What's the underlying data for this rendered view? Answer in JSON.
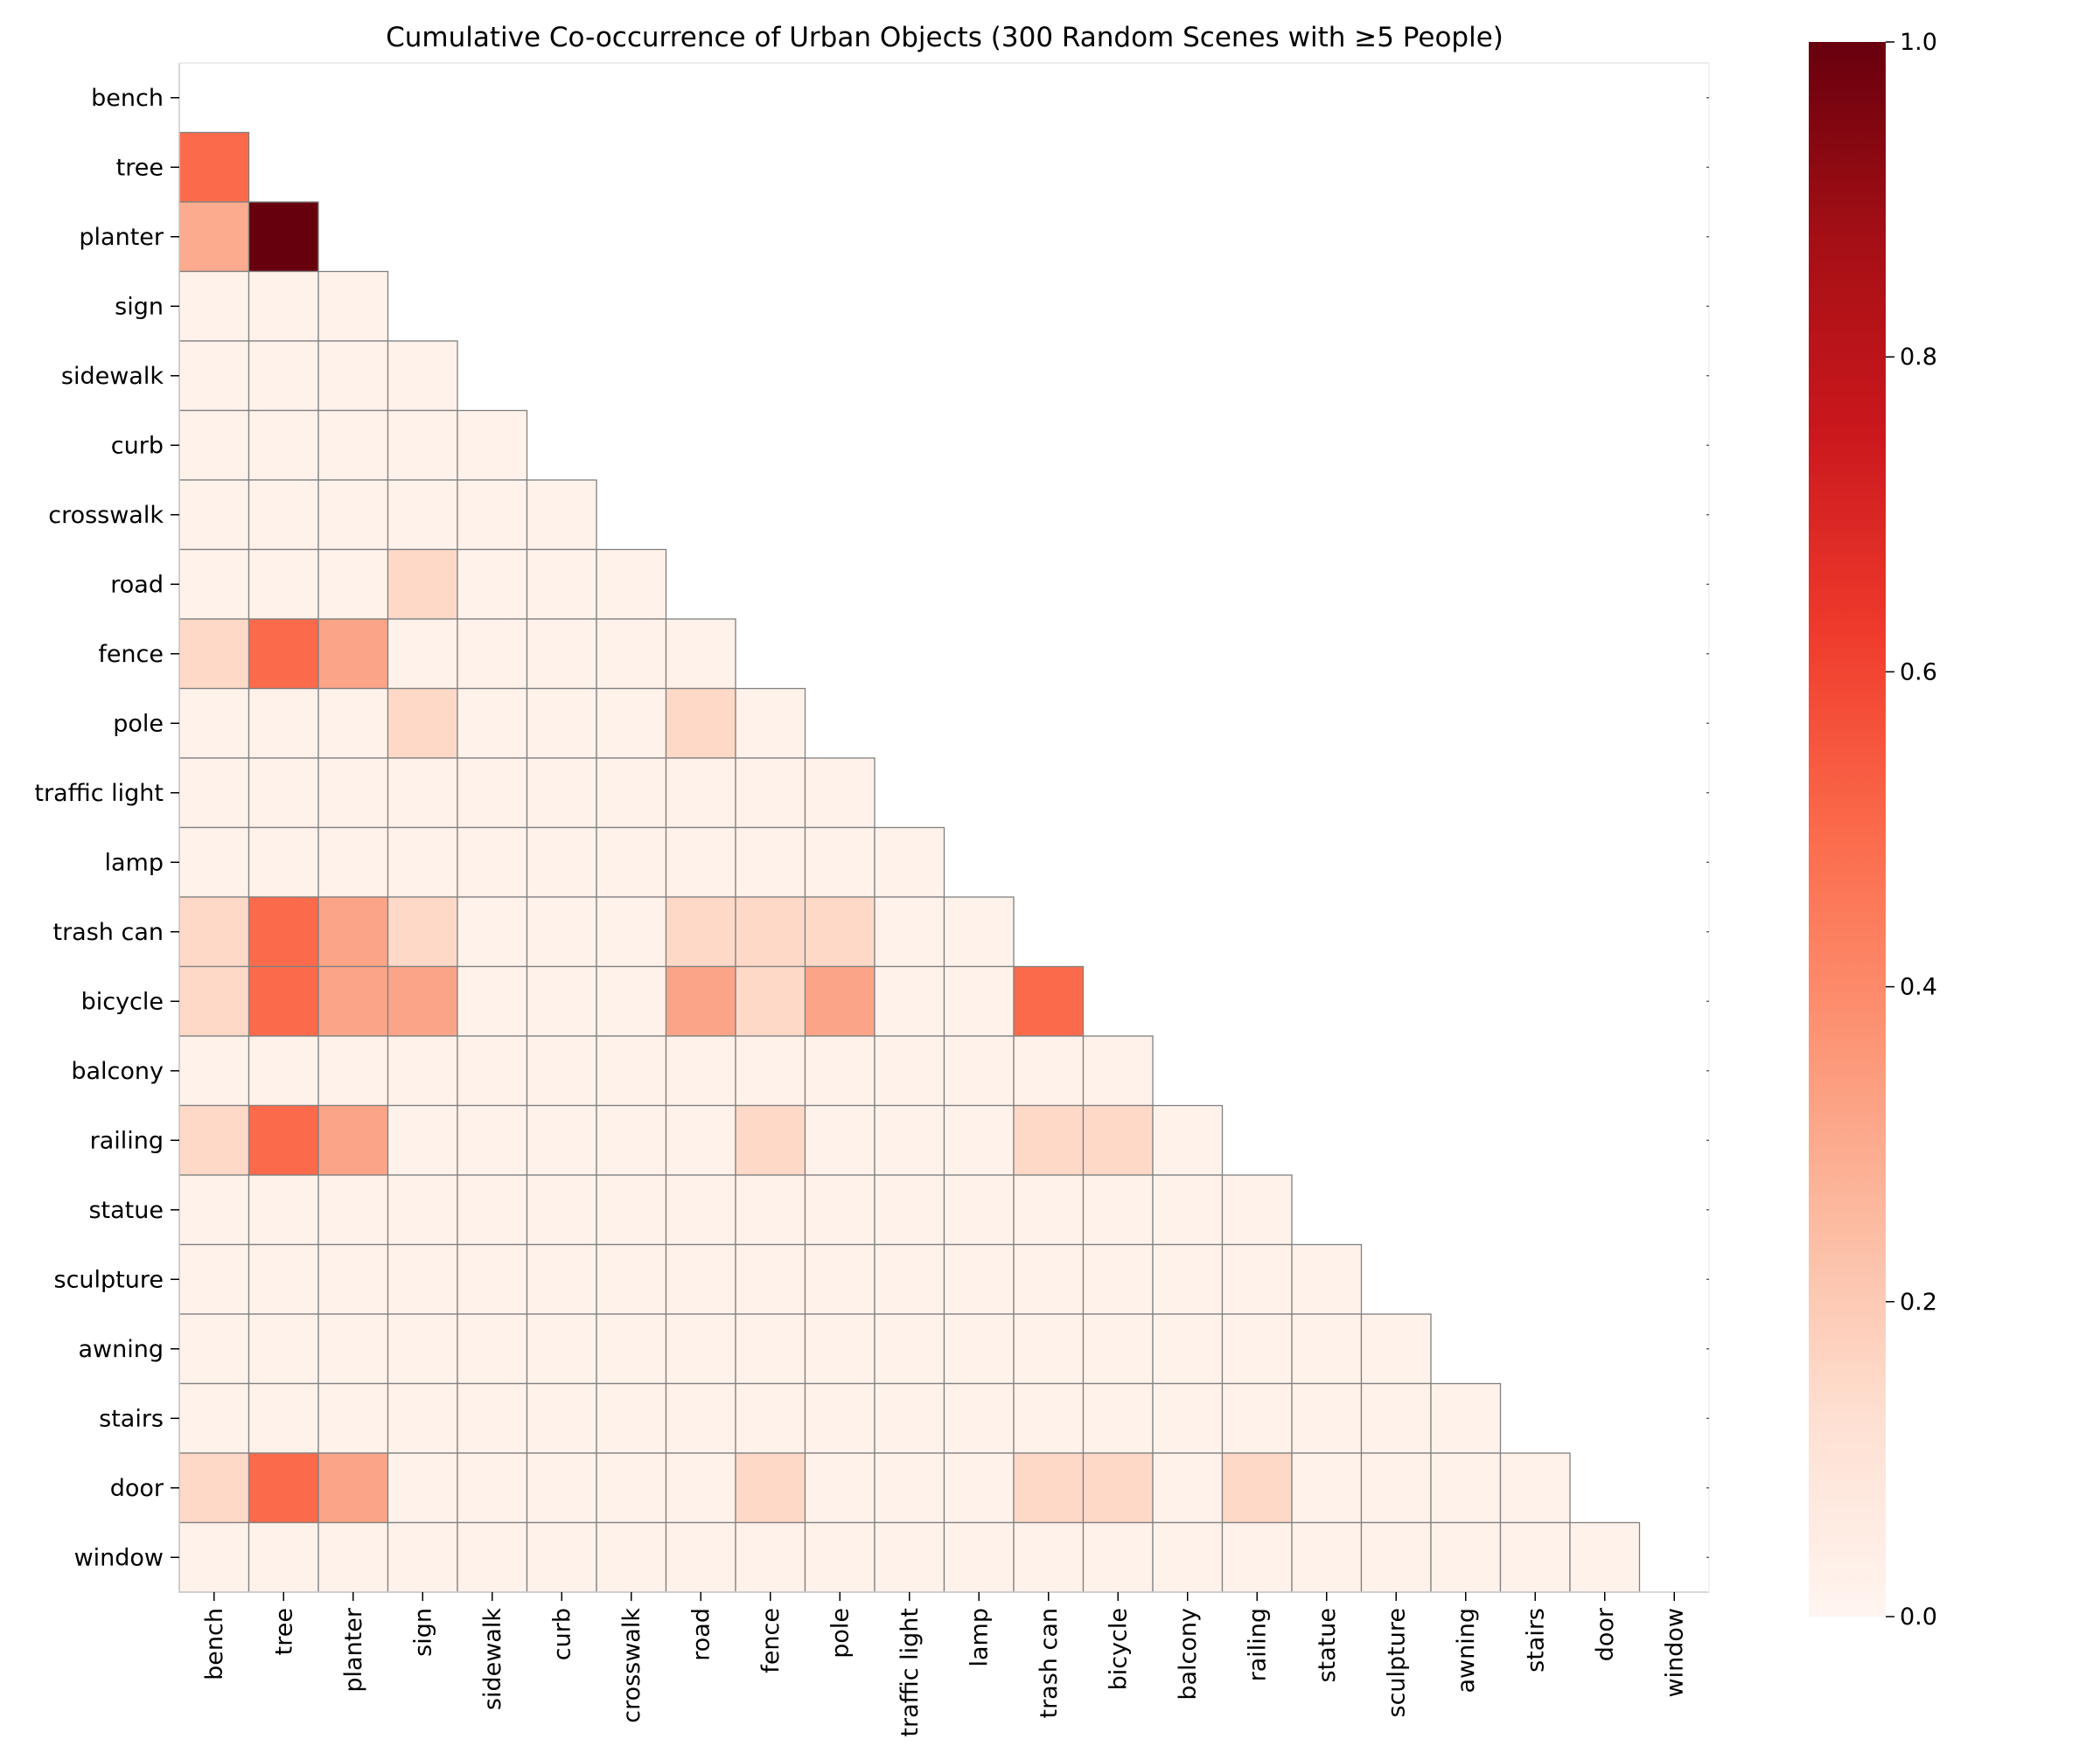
{
  "chart_data": {
    "type": "heatmap",
    "title": "Cumulative Co-occurrence of Urban Objects (300 Random Scenes with ≥5 People)",
    "xlabel": "",
    "ylabel": "",
    "mask": "lower-triangle",
    "labels": [
      "bench",
      "tree",
      "planter",
      "sign",
      "sidewalk",
      "curb",
      "crosswalk",
      "road",
      "fence",
      "pole",
      "traffic light",
      "lamp",
      "trash can",
      "bicycle",
      "balcony",
      "railing",
      "statue",
      "sculpture",
      "awning",
      "stairs",
      "door",
      "window"
    ],
    "matrix": [
      [],
      [
        0.5
      ],
      [
        0.3,
        1.0
      ],
      [
        0.02,
        0.02,
        0.02
      ],
      [
        0.02,
        0.02,
        0.02,
        0.02
      ],
      [
        0.02,
        0.02,
        0.02,
        0.02,
        0.02
      ],
      [
        0.02,
        0.02,
        0.02,
        0.02,
        0.02,
        0.02
      ],
      [
        0.02,
        0.02,
        0.02,
        0.15,
        0.02,
        0.02,
        0.02
      ],
      [
        0.15,
        0.5,
        0.32,
        0.02,
        0.02,
        0.02,
        0.02,
        0.02
      ],
      [
        0.02,
        0.02,
        0.02,
        0.15,
        0.02,
        0.02,
        0.02,
        0.15,
        0.02
      ],
      [
        0.02,
        0.02,
        0.02,
        0.02,
        0.02,
        0.02,
        0.02,
        0.02,
        0.02,
        0.02
      ],
      [
        0.02,
        0.02,
        0.02,
        0.02,
        0.02,
        0.02,
        0.02,
        0.02,
        0.02,
        0.02,
        0.02
      ],
      [
        0.15,
        0.5,
        0.32,
        0.15,
        0.02,
        0.02,
        0.02,
        0.15,
        0.15,
        0.15,
        0.02,
        0.02
      ],
      [
        0.15,
        0.5,
        0.32,
        0.32,
        0.02,
        0.02,
        0.02,
        0.32,
        0.15,
        0.32,
        0.02,
        0.02,
        0.5
      ],
      [
        0.02,
        0.02,
        0.02,
        0.02,
        0.02,
        0.02,
        0.02,
        0.02,
        0.02,
        0.02,
        0.02,
        0.02,
        0.02,
        0.02
      ],
      [
        0.15,
        0.5,
        0.32,
        0.02,
        0.02,
        0.02,
        0.02,
        0.02,
        0.15,
        0.02,
        0.02,
        0.02,
        0.15,
        0.15,
        0.02
      ],
      [
        0.02,
        0.02,
        0.02,
        0.02,
        0.02,
        0.02,
        0.02,
        0.02,
        0.02,
        0.02,
        0.02,
        0.02,
        0.02,
        0.02,
        0.02,
        0.02
      ],
      [
        0.02,
        0.02,
        0.02,
        0.02,
        0.02,
        0.02,
        0.02,
        0.02,
        0.02,
        0.02,
        0.02,
        0.02,
        0.02,
        0.02,
        0.02,
        0.02,
        0.02
      ],
      [
        0.02,
        0.02,
        0.02,
        0.02,
        0.02,
        0.02,
        0.02,
        0.02,
        0.02,
        0.02,
        0.02,
        0.02,
        0.02,
        0.02,
        0.02,
        0.02,
        0.02,
        0.02
      ],
      [
        0.02,
        0.02,
        0.02,
        0.02,
        0.02,
        0.02,
        0.02,
        0.02,
        0.02,
        0.02,
        0.02,
        0.02,
        0.02,
        0.02,
        0.02,
        0.02,
        0.02,
        0.02,
        0.02
      ],
      [
        0.15,
        0.5,
        0.32,
        0.02,
        0.02,
        0.02,
        0.02,
        0.02,
        0.15,
        0.02,
        0.02,
        0.02,
        0.15,
        0.15,
        0.02,
        0.15,
        0.02,
        0.02,
        0.02,
        0.02
      ],
      [
        0.02,
        0.02,
        0.02,
        0.02,
        0.02,
        0.02,
        0.02,
        0.02,
        0.02,
        0.02,
        0.02,
        0.02,
        0.02,
        0.02,
        0.02,
        0.02,
        0.02,
        0.02,
        0.02,
        0.02,
        0.02
      ]
    ],
    "colorbar": {
      "range": [
        0.0,
        1.0
      ],
      "ticks": [
        0.0,
        0.2,
        0.4,
        0.6,
        0.8,
        1.0
      ],
      "tick_labels": [
        "0.0",
        "0.2",
        "0.4",
        "0.6",
        "0.8",
        "1.0"
      ],
      "colormap": "Reds",
      "stops": [
        "#fff5f0",
        "#fee0d2",
        "#fcbba1",
        "#fc9272",
        "#fb6a4a",
        "#ef3b2c",
        "#cb181d",
        "#a50f15",
        "#67000d"
      ]
    }
  }
}
